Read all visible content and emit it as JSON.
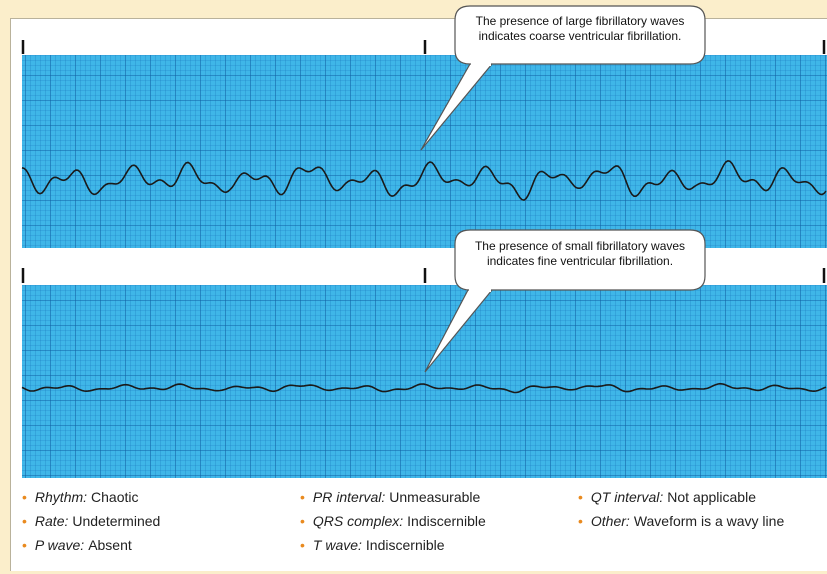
{
  "strips": [
    {
      "callout": "The presence of large fibrillatory waves indicates coarse ventricular fibrillation."
    },
    {
      "callout": "The presence of small fibrillatory waves indicates fine ventricular fibrillation."
    }
  ],
  "criteria": [
    {
      "label": "Rhythm:",
      "value": "Chaotic"
    },
    {
      "label": "Rate:",
      "value": "Undetermined"
    },
    {
      "label": "P wave:",
      "value": "Absent"
    },
    {
      "label": "PR interval:",
      "value": "Unmeasurable"
    },
    {
      "label": "QRS complex:",
      "value": "Indiscernible"
    },
    {
      "label": "T wave:",
      "value": "Indiscernible"
    },
    {
      "label": "QT interval:",
      "value": "Not applicable"
    },
    {
      "label": "Other:",
      "value": "Waveform is a wavy line"
    }
  ]
}
